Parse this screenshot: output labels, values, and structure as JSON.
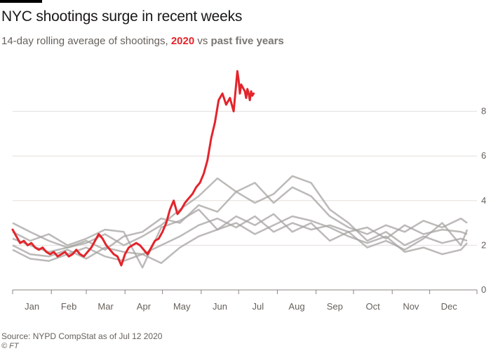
{
  "title": "NYC shootings surge in recent weeks",
  "subtitle": {
    "prefix": "14-day rolling average of shootings, ",
    "highlight_2020": "2020",
    "mid": " vs ",
    "highlight_past": "past five years"
  },
  "source": "Source: NYPD CompStat as of Jul 12 2020",
  "credit": "© FT",
  "colors": {
    "series_2020": "#e3242b",
    "past_years": "#a6a3a0",
    "grid": "#e3dfdb",
    "axis": "#66605c"
  },
  "chart_data": {
    "type": "line",
    "title": "NYC shootings surge in recent weeks",
    "xlabel": "",
    "ylabel": "",
    "x_ticks": [
      "Jan",
      "Feb",
      "Mar",
      "Apr",
      "May",
      "Jun",
      "Jul",
      "Aug",
      "Sep",
      "Oct",
      "Nov",
      "Dec"
    ],
    "y_ticks": [
      0,
      2,
      4,
      6,
      8
    ],
    "ylim": [
      0,
      10
    ],
    "xlim_days": [
      1,
      365
    ],
    "grid": true,
    "y_axis_side": "right",
    "legend": "none",
    "series": [
      {
        "label": "2020",
        "x": [
          1,
          4,
          7,
          10,
          13,
          16,
          19,
          22,
          25,
          28,
          31,
          34,
          37,
          40,
          43,
          46,
          49,
          52,
          55,
          58,
          61,
          64,
          67,
          70,
          73,
          76,
          79,
          82,
          85,
          88,
          91,
          94,
          97,
          100,
          103,
          106,
          109,
          112,
          115,
          118,
          121,
          124,
          127,
          130,
          133,
          136,
          139,
          142,
          145,
          148,
          151,
          154,
          157,
          160,
          163,
          166,
          169,
          172,
          175,
          178,
          181,
          182,
          183,
          184,
          185,
          186,
          187,
          188,
          189,
          190,
          191,
          192,
          193,
          194
        ],
        "y": [
          2.7,
          2.4,
          2.1,
          2.2,
          2.0,
          2.1,
          1.9,
          1.8,
          1.9,
          1.7,
          1.6,
          1.7,
          1.5,
          1.6,
          1.7,
          1.5,
          1.6,
          1.8,
          1.6,
          1.5,
          1.7,
          1.9,
          2.2,
          2.5,
          2.3,
          2.0,
          1.8,
          1.6,
          1.5,
          1.1,
          1.6,
          1.9,
          2.0,
          2.1,
          2.0,
          1.8,
          1.6,
          1.9,
          2.2,
          2.3,
          2.6,
          3.0,
          3.6,
          4.0,
          3.4,
          3.6,
          3.9,
          4.1,
          4.3,
          4.6,
          4.8,
          5.2,
          5.8,
          6.8,
          7.5,
          8.5,
          8.8,
          8.3,
          8.6,
          8.0,
          9.8,
          9.4,
          8.8,
          9.2,
          9.1,
          9.0,
          8.9,
          8.6,
          9.0,
          8.8,
          8.5,
          8.9,
          8.7,
          8.8
        ]
      },
      {
        "x": [
          1,
          15,
          30,
          45,
          60,
          75,
          90,
          105,
          120,
          135,
          150,
          165,
          180,
          195,
          210,
          225,
          240,
          255,
          270,
          285,
          300,
          315,
          330,
          345,
          360,
          365
        ],
        "y": [
          3.0,
          2.6,
          2.2,
          1.9,
          2.1,
          2.5,
          2.0,
          2.4,
          2.9,
          3.6,
          4.2,
          5.0,
          4.4,
          4.8,
          3.9,
          4.6,
          4.2,
          3.3,
          2.8,
          2.5,
          2.9,
          2.6,
          3.1,
          2.8,
          3.2,
          3.0
        ]
      },
      {
        "x": [
          1,
          15,
          30,
          45,
          60,
          75,
          90,
          105,
          120,
          135,
          150,
          165,
          180,
          195,
          210,
          225,
          240,
          255,
          270,
          285,
          300,
          315,
          330,
          345,
          360,
          365
        ],
        "y": [
          2.3,
          2.0,
          1.7,
          1.9,
          2.2,
          1.8,
          2.4,
          2.6,
          3.2,
          3.0,
          3.8,
          3.5,
          4.4,
          3.9,
          4.3,
          5.1,
          4.8,
          3.6,
          3.0,
          2.2,
          2.6,
          2.0,
          2.4,
          2.1,
          2.3,
          2.2
        ]
      },
      {
        "x": [
          1,
          15,
          30,
          45,
          60,
          75,
          90,
          105,
          120,
          135,
          150,
          165,
          180,
          195,
          210,
          225,
          240,
          255,
          270,
          285,
          300,
          315,
          330,
          345,
          360,
          365
        ],
        "y": [
          2.0,
          1.6,
          1.5,
          1.8,
          1.4,
          1.9,
          1.7,
          1.6,
          2.0,
          2.4,
          2.9,
          3.2,
          2.8,
          3.3,
          2.6,
          3.0,
          2.7,
          2.9,
          2.6,
          2.8,
          2.3,
          2.9,
          2.5,
          2.7,
          2.6,
          2.5
        ]
      },
      {
        "x": [
          1,
          15,
          30,
          45,
          60,
          75,
          90,
          105,
          120,
          135,
          150,
          165,
          180,
          195,
          210,
          225,
          240,
          255,
          270,
          285,
          300,
          315,
          330,
          345,
          360,
          365
        ],
        "y": [
          1.8,
          1.4,
          1.3,
          1.6,
          1.9,
          1.5,
          1.3,
          1.6,
          1.2,
          1.9,
          2.4,
          2.7,
          3.0,
          2.5,
          2.9,
          3.3,
          3.1,
          2.8,
          2.4,
          2.1,
          2.4,
          1.7,
          1.9,
          1.6,
          1.8,
          2.1
        ]
      },
      {
        "x": [
          1,
          15,
          30,
          45,
          60,
          75,
          90,
          105,
          120,
          135,
          150,
          165,
          180,
          195,
          210,
          225,
          240,
          255,
          270,
          285,
          300,
          315,
          330,
          345,
          360,
          365
        ],
        "y": [
          2.6,
          2.2,
          2.5,
          2.0,
          2.3,
          2.7,
          2.6,
          1.0,
          2.8,
          3.1,
          3.6,
          2.7,
          3.3,
          2.9,
          3.4,
          2.6,
          3.0,
          2.2,
          2.6,
          1.9,
          2.2,
          1.8,
          2.3,
          3.0,
          2.0,
          2.7
        ]
      }
    ]
  }
}
